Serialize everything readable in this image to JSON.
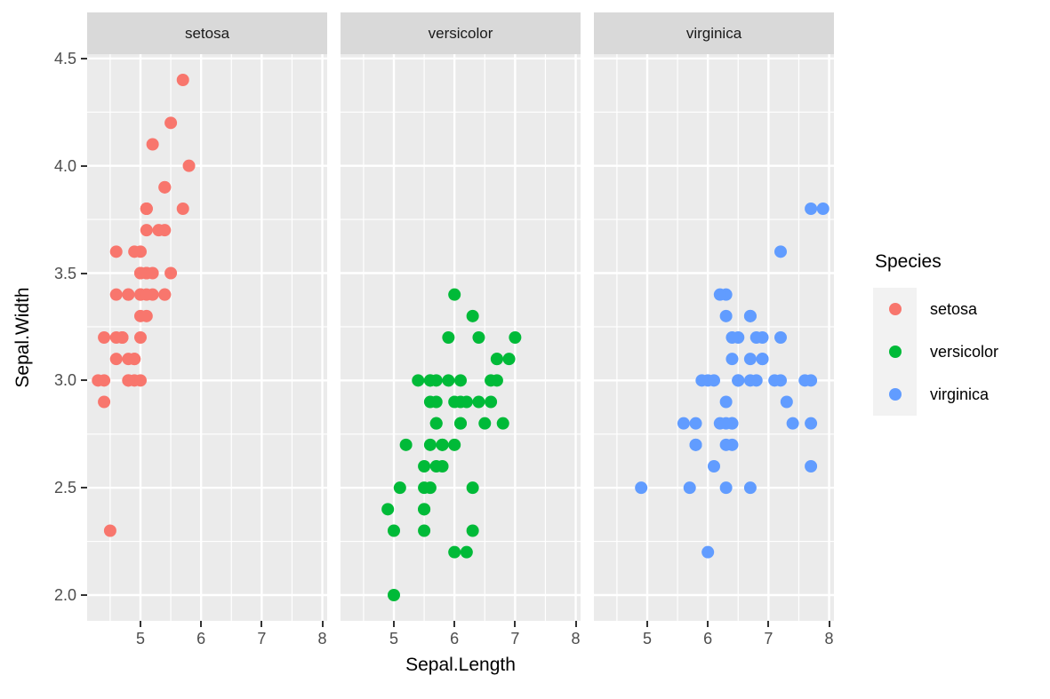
{
  "chart_data": {
    "type": "scatter",
    "title": "",
    "xlabel": "Sepal.Length",
    "ylabel": "Sepal.Width",
    "facets": [
      "setosa",
      "versicolor",
      "virginica"
    ],
    "legend": {
      "title": "Species",
      "position": "right"
    },
    "grid": true,
    "xlim": [
      4.12,
      8.08
    ],
    "ylim": [
      1.88,
      4.52
    ],
    "x_ticks": [
      5,
      6,
      7,
      8
    ],
    "x_tick_labels": [
      "5",
      "6",
      "7",
      "8"
    ],
    "x_minor": [
      4.5,
      5.5,
      6.5,
      7.5
    ],
    "y_ticks": [
      2.0,
      2.5,
      3.0,
      3.5,
      4.0,
      4.5
    ],
    "y_tick_labels": [
      "2.0",
      "2.5",
      "3.0",
      "3.5",
      "4.0",
      "4.5"
    ],
    "y_minor": [
      2.25,
      2.75,
      3.25,
      3.75,
      4.25
    ],
    "colors": {
      "background": "#FFFFFF",
      "panel_bg": "#EBEBEB",
      "strip_bg": "#D9D9D9",
      "gridline": "#FFFFFF",
      "tick_mark": "#333333",
      "tick_label": "#4D4D4D",
      "strip_text": "#1A1A1A",
      "axis_title": "#000000",
      "legend_key_bg": "#F2F2F2"
    },
    "series": [
      {
        "name": "setosa",
        "color": "#F8766D",
        "points": [
          [
            5.1,
            3.5
          ],
          [
            4.9,
            3.0
          ],
          [
            4.7,
            3.2
          ],
          [
            4.6,
            3.1
          ],
          [
            5.0,
            3.6
          ],
          [
            5.4,
            3.9
          ],
          [
            4.6,
            3.4
          ],
          [
            5.0,
            3.4
          ],
          [
            4.4,
            2.9
          ],
          [
            4.9,
            3.1
          ],
          [
            5.4,
            3.7
          ],
          [
            4.8,
            3.4
          ],
          [
            4.8,
            3.0
          ],
          [
            4.3,
            3.0
          ],
          [
            5.8,
            4.0
          ],
          [
            5.7,
            4.4
          ],
          [
            5.4,
            3.9
          ],
          [
            5.1,
            3.5
          ],
          [
            5.7,
            3.8
          ],
          [
            5.1,
            3.8
          ],
          [
            5.4,
            3.4
          ],
          [
            5.1,
            3.7
          ],
          [
            4.6,
            3.6
          ],
          [
            5.1,
            3.3
          ],
          [
            4.8,
            3.4
          ],
          [
            5.0,
            3.0
          ],
          [
            5.0,
            3.4
          ],
          [
            5.2,
            3.5
          ],
          [
            5.2,
            3.4
          ],
          [
            4.7,
            3.2
          ],
          [
            4.8,
            3.1
          ],
          [
            5.4,
            3.4
          ],
          [
            5.2,
            4.1
          ],
          [
            5.5,
            4.2
          ],
          [
            4.9,
            3.1
          ],
          [
            5.0,
            3.2
          ],
          [
            5.5,
            3.5
          ],
          [
            4.9,
            3.6
          ],
          [
            4.4,
            3.0
          ],
          [
            5.1,
            3.4
          ],
          [
            5.0,
            3.5
          ],
          [
            4.5,
            2.3
          ],
          [
            4.4,
            3.2
          ],
          [
            5.0,
            3.5
          ],
          [
            5.1,
            3.8
          ],
          [
            4.8,
            3.0
          ],
          [
            5.1,
            3.8
          ],
          [
            4.6,
            3.2
          ],
          [
            5.3,
            3.7
          ],
          [
            5.0,
            3.3
          ]
        ]
      },
      {
        "name": "versicolor",
        "color": "#00BA38",
        "points": [
          [
            7.0,
            3.2
          ],
          [
            6.4,
            3.2
          ],
          [
            6.9,
            3.1
          ],
          [
            5.5,
            2.3
          ],
          [
            6.5,
            2.8
          ],
          [
            5.7,
            2.8
          ],
          [
            6.3,
            3.3
          ],
          [
            4.9,
            2.4
          ],
          [
            6.6,
            2.9
          ],
          [
            5.2,
            2.7
          ],
          [
            5.0,
            2.0
          ],
          [
            5.9,
            3.0
          ],
          [
            6.0,
            2.2
          ],
          [
            6.1,
            2.9
          ],
          [
            5.6,
            2.9
          ],
          [
            6.7,
            3.1
          ],
          [
            5.6,
            3.0
          ],
          [
            5.8,
            2.7
          ],
          [
            6.2,
            2.2
          ],
          [
            5.6,
            2.5
          ],
          [
            5.9,
            3.2
          ],
          [
            6.1,
            2.8
          ],
          [
            6.3,
            2.5
          ],
          [
            6.1,
            2.8
          ],
          [
            6.4,
            2.9
          ],
          [
            6.6,
            3.0
          ],
          [
            6.8,
            2.8
          ],
          [
            6.7,
            3.0
          ],
          [
            6.0,
            2.9
          ],
          [
            5.7,
            2.6
          ],
          [
            5.5,
            2.4
          ],
          [
            5.5,
            2.4
          ],
          [
            5.8,
            2.7
          ],
          [
            6.0,
            2.7
          ],
          [
            5.4,
            3.0
          ],
          [
            6.0,
            3.4
          ],
          [
            6.7,
            3.1
          ],
          [
            6.3,
            2.3
          ],
          [
            5.6,
            3.0
          ],
          [
            5.5,
            2.5
          ],
          [
            5.5,
            2.6
          ],
          [
            6.1,
            3.0
          ],
          [
            5.8,
            2.6
          ],
          [
            5.0,
            2.3
          ],
          [
            5.6,
            2.7
          ],
          [
            5.7,
            3.0
          ],
          [
            5.7,
            2.9
          ],
          [
            6.2,
            2.9
          ],
          [
            5.1,
            2.5
          ],
          [
            5.7,
            2.8
          ]
        ]
      },
      {
        "name": "virginica",
        "color": "#619CFF",
        "points": [
          [
            6.3,
            3.3
          ],
          [
            5.8,
            2.7
          ],
          [
            7.1,
            3.0
          ],
          [
            6.3,
            2.9
          ],
          [
            6.5,
            3.0
          ],
          [
            7.6,
            3.0
          ],
          [
            4.9,
            2.5
          ],
          [
            7.3,
            2.9
          ],
          [
            6.7,
            2.5
          ],
          [
            7.2,
            3.6
          ],
          [
            6.5,
            3.2
          ],
          [
            6.4,
            2.7
          ],
          [
            6.8,
            3.0
          ],
          [
            5.7,
            2.5
          ],
          [
            5.8,
            2.8
          ],
          [
            6.4,
            3.2
          ],
          [
            6.5,
            3.0
          ],
          [
            7.7,
            3.8
          ],
          [
            7.7,
            2.6
          ],
          [
            6.0,
            2.2
          ],
          [
            6.9,
            3.2
          ],
          [
            5.6,
            2.8
          ],
          [
            7.7,
            2.8
          ],
          [
            6.3,
            2.7
          ],
          [
            6.7,
            3.3
          ],
          [
            7.2,
            3.2
          ],
          [
            6.2,
            2.8
          ],
          [
            6.1,
            3.0
          ],
          [
            6.4,
            2.8
          ],
          [
            7.2,
            3.0
          ],
          [
            7.4,
            2.8
          ],
          [
            7.9,
            3.8
          ],
          [
            6.4,
            2.8
          ],
          [
            6.3,
            2.8
          ],
          [
            6.1,
            2.6
          ],
          [
            7.7,
            3.0
          ],
          [
            6.3,
            3.4
          ],
          [
            6.4,
            3.1
          ],
          [
            6.0,
            3.0
          ],
          [
            6.9,
            3.1
          ],
          [
            6.7,
            3.1
          ],
          [
            6.9,
            3.1
          ],
          [
            5.8,
            2.7
          ],
          [
            6.8,
            3.2
          ],
          [
            6.7,
            3.3
          ],
          [
            6.7,
            3.0
          ],
          [
            6.3,
            2.5
          ],
          [
            6.5,
            3.0
          ],
          [
            6.2,
            3.4
          ],
          [
            5.9,
            3.0
          ]
        ]
      }
    ]
  }
}
